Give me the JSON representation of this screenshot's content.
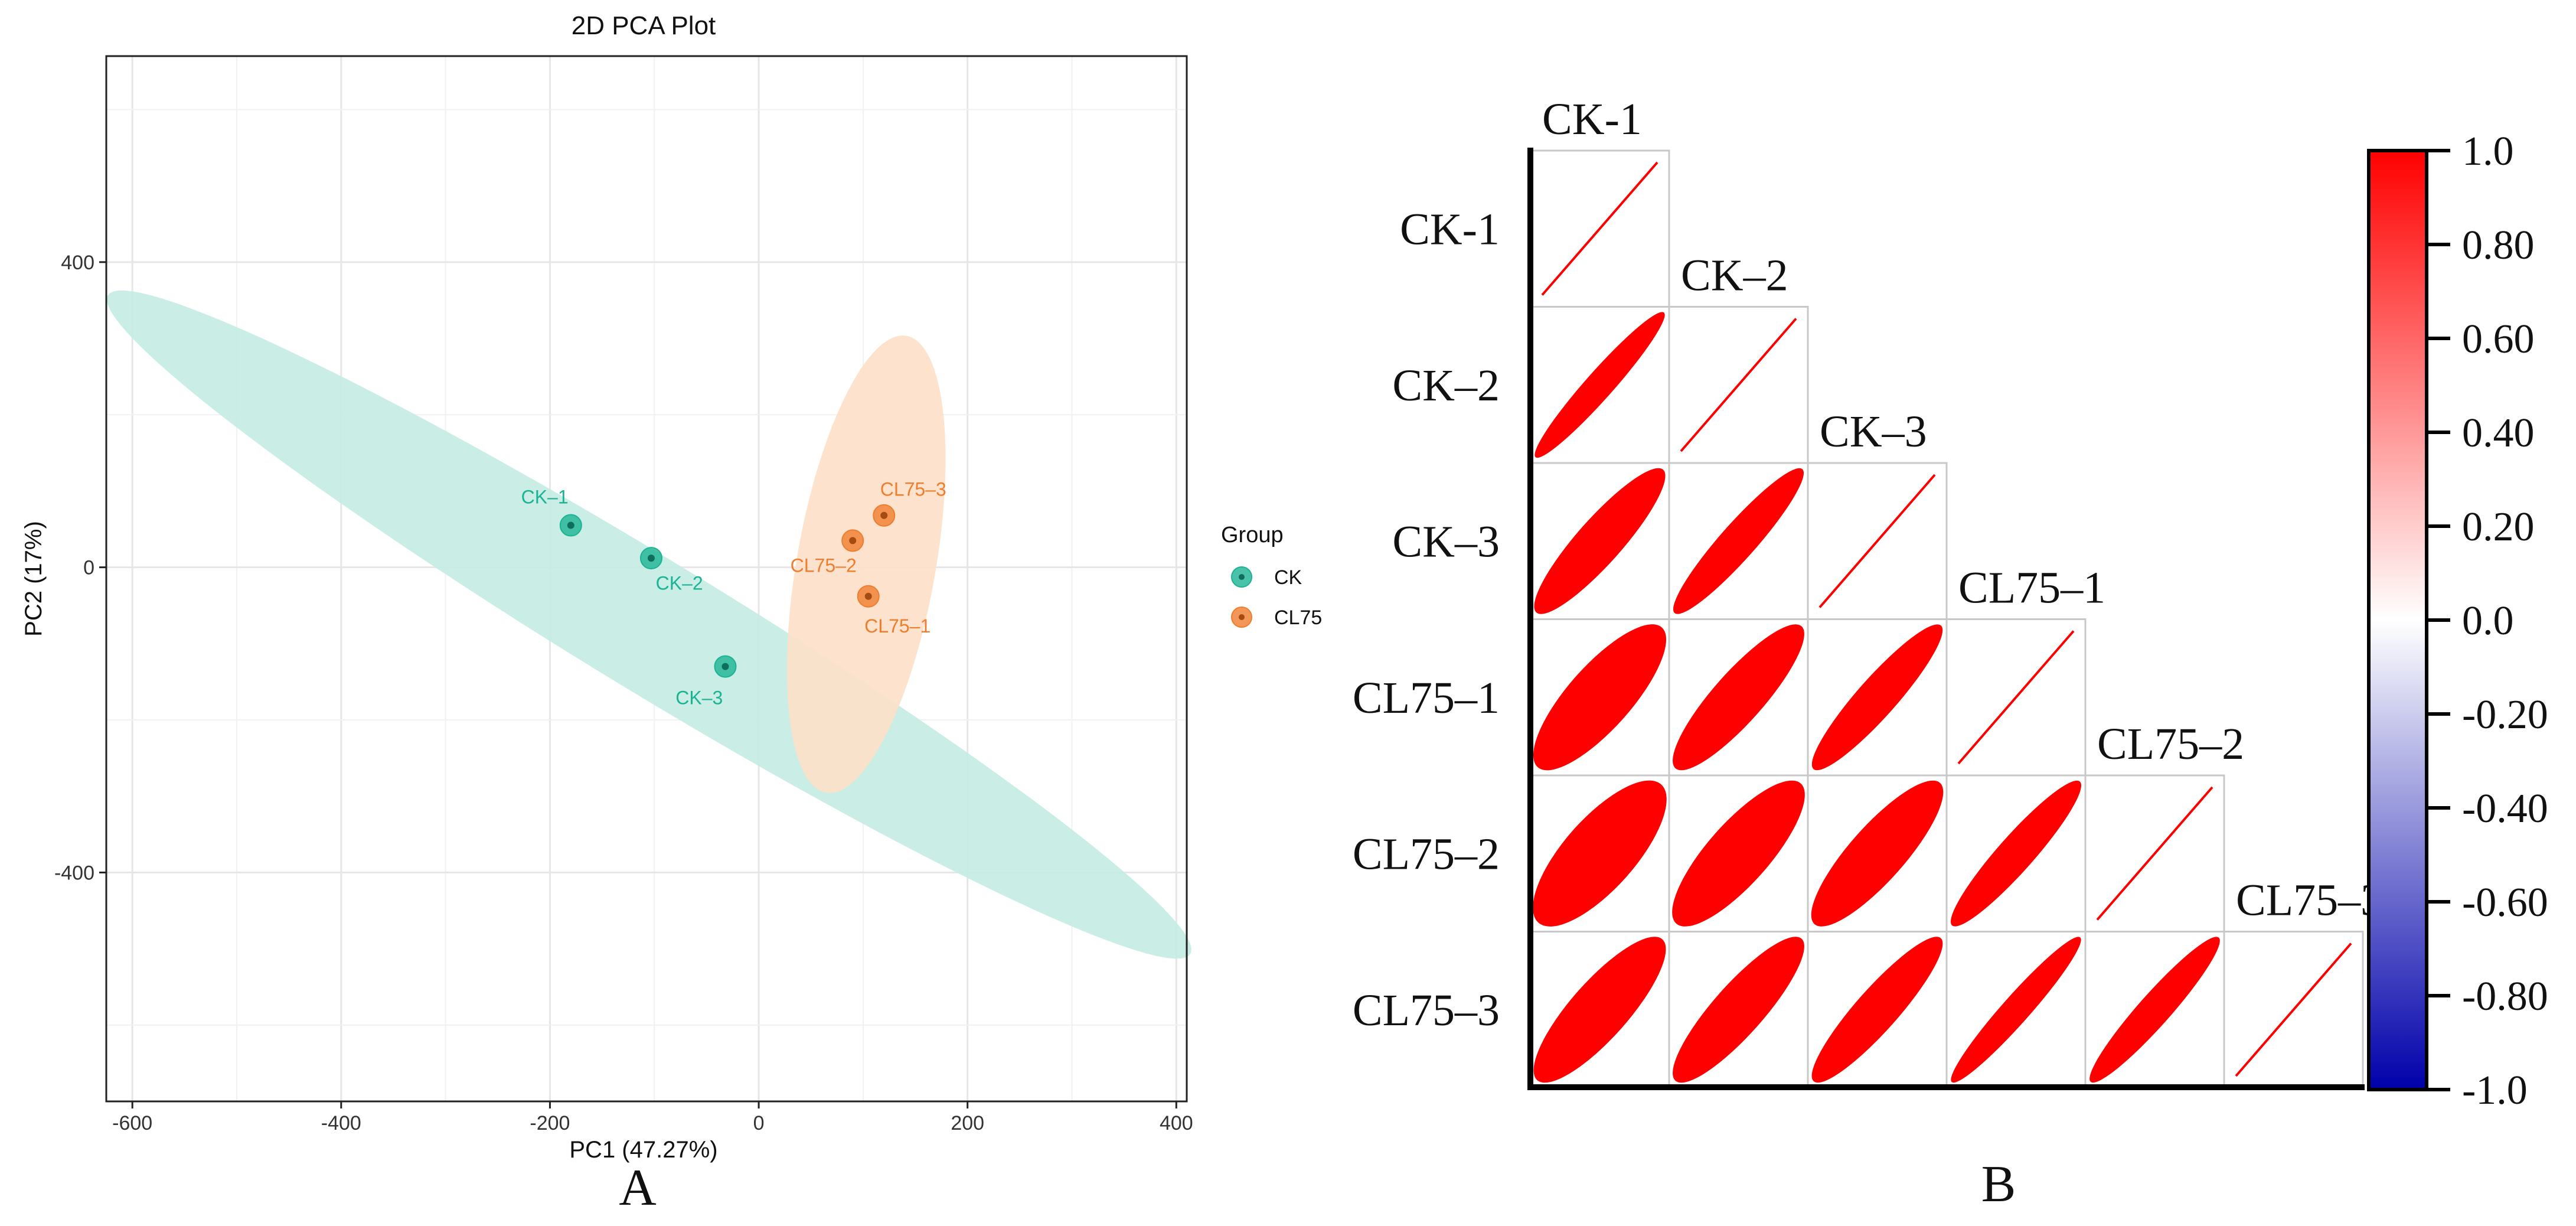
{
  "chart_data": [
    {
      "type": "scatter",
      "title": "2D PCA Plot",
      "xlabel": "PC1 (47.27%)",
      "ylabel": "PC2 (17%)",
      "xlim": [
        -625,
        410
      ],
      "ylim": [
        -700,
        670
      ],
      "xticks": [
        -600,
        -400,
        -200,
        0,
        200,
        400
      ],
      "yticks": [
        -400,
        0,
        400
      ],
      "grid": true,
      "legend": {
        "title": "Group",
        "position": "right"
      },
      "panel_label": "A",
      "series": [
        {
          "name": "CK",
          "color": "#1bb394",
          "ellipse_color": "#c4ece3",
          "points": [
            {
              "label": "CK–1",
              "x": -180,
              "y": 55
            },
            {
              "label": "CK–2",
              "x": -103,
              "y": 12
            },
            {
              "label": "CK–3",
              "x": -32,
              "y": -130
            }
          ],
          "ellipse": {
            "center": [
              -105,
              -75
            ],
            "semi_major": 675,
            "semi_minor": 78,
            "angle_deg": -40
          }
        },
        {
          "name": "CL75",
          "color": "#ef7d2e",
          "ellipse_color": "#fde0c9",
          "points": [
            {
              "label": "CL75–1",
              "x": 105,
              "y": -38
            },
            {
              "label": "CL75–2",
              "x": 90,
              "y": 35
            },
            {
              "label": "CL75–3",
              "x": 120,
              "y": 68
            }
          ],
          "ellipse": {
            "center": [
              103,
              4
            ],
            "semi_major": 302,
            "semi_minor": 67,
            "angle_deg": 83
          }
        }
      ]
    },
    {
      "type": "heatmap",
      "subtype": "correlation-ellipse-lower-triangle",
      "panel_label": "B",
      "samples": [
        "CK-1",
        "CK–2",
        "CK–3",
        "CL75–1",
        "CL75–2",
        "CL75–3"
      ],
      "matrix": [
        [
          1.0,
          0.97,
          0.92,
          0.84,
          0.8,
          0.87
        ],
        [
          0.97,
          1.0,
          0.95,
          0.9,
          0.85,
          0.9
        ],
        [
          0.92,
          0.95,
          1.0,
          0.94,
          0.88,
          0.93
        ],
        [
          0.84,
          0.9,
          0.94,
          1.0,
          0.95,
          0.97
        ],
        [
          0.8,
          0.85,
          0.88,
          0.95,
          1.0,
          0.96
        ],
        [
          0.87,
          0.9,
          0.93,
          0.97,
          0.96,
          1.0
        ]
      ],
      "colorbar": {
        "range": [
          -1.0,
          1.0
        ],
        "ticks": [
          "1.0",
          "0.80",
          "0.60",
          "0.40",
          "0.20",
          "0.0",
          "-0.20",
          "-0.40",
          "-0.60",
          "-0.80",
          "-1.0"
        ],
        "low_color": "#0000aa",
        "mid_color": "#ffffff",
        "high_color": "#ff0000"
      }
    }
  ]
}
